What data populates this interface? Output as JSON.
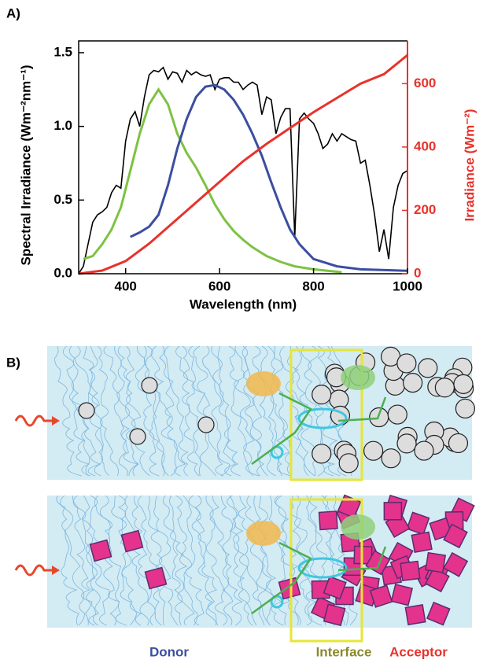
{
  "panel_labels": [
    "A)",
    "B)"
  ],
  "chart_data": {
    "type": "line",
    "xlabel": "Wavelength (nm)",
    "ylabel": "Spectral Irradiance (Wm⁻²nm⁻¹)",
    "y2label": "Irradiance (Wm⁻²)",
    "xlim": [
      300,
      1000
    ],
    "xticks": [
      400,
      600,
      800,
      1000
    ],
    "ylim": [
      0,
      1.58
    ],
    "yticks": [
      {
        "value": 0,
        "label": "0.0"
      },
      0.5,
      {
        "value": 1,
        "label": "1.0"
      },
      1.5
    ],
    "y2lim": [
      0,
      735
    ],
    "y2ticks": [
      0,
      200,
      400,
      600
    ],
    "y2color": "#e8322b",
    "series": [
      {
        "color": "#000000",
        "x": [
          300,
          310,
          320,
          330,
          340,
          350,
          360,
          370,
          380,
          390,
          400,
          410,
          420,
          430,
          440,
          450,
          460,
          470,
          480,
          490,
          500,
          510,
          520,
          530,
          540,
          550,
          560,
          570,
          580,
          590,
          600,
          610,
          620,
          630,
          640,
          650,
          660,
          670,
          680,
          690,
          700,
          710,
          720,
          730,
          740,
          750,
          760,
          770,
          780,
          790,
          800,
          810,
          820,
          830,
          840,
          850,
          860,
          870,
          880,
          890,
          900,
          910,
          920,
          930,
          940,
          950,
          960,
          970,
          980,
          990,
          1000
        ],
        "values": [
          0.0,
          0.05,
          0.2,
          0.35,
          0.4,
          0.42,
          0.45,
          0.55,
          0.6,
          0.58,
          0.9,
          1.05,
          1.1,
          1.0,
          1.2,
          1.35,
          1.38,
          1.37,
          1.4,
          1.32,
          1.37,
          1.36,
          1.3,
          1.38,
          1.35,
          1.37,
          1.35,
          1.34,
          1.35,
          1.25,
          1.32,
          1.33,
          1.33,
          1.3,
          1.3,
          1.25,
          1.28,
          1.3,
          1.28,
          1.08,
          1.2,
          1.18,
          0.95,
          1.06,
          1.12,
          1.12,
          0.25,
          1.05,
          1.09,
          1.05,
          1.02,
          0.95,
          0.85,
          0.88,
          0.95,
          0.9,
          0.95,
          0.93,
          0.91,
          0.9,
          0.75,
          0.77,
          0.6,
          0.4,
          0.15,
          0.3,
          0.1,
          0.45,
          0.6,
          0.68,
          0.7
        ]
      },
      {
        "color": "#7dc242",
        "x": [
          310,
          330,
          350,
          370,
          390,
          410,
          430,
          450,
          470,
          490,
          510,
          530,
          550,
          570,
          590,
          610,
          630,
          650,
          670,
          700,
          730,
          760,
          800,
          860
        ],
        "values": [
          0.1,
          0.12,
          0.2,
          0.3,
          0.45,
          0.7,
          0.95,
          1.15,
          1.25,
          1.15,
          0.95,
          0.82,
          0.72,
          0.6,
          0.47,
          0.37,
          0.29,
          0.23,
          0.18,
          0.12,
          0.08,
          0.05,
          0.03,
          0.01
        ]
      },
      {
        "color": "#3b4ea0",
        "x": [
          410,
          430,
          450,
          470,
          490,
          510,
          530,
          550,
          570,
          590,
          610,
          630,
          650,
          670,
          690,
          710,
          730,
          750,
          770,
          800,
          850,
          900,
          1000
        ],
        "values": [
          0.25,
          0.28,
          0.32,
          0.4,
          0.6,
          0.85,
          1.05,
          1.2,
          1.27,
          1.28,
          1.25,
          1.18,
          1.08,
          0.95,
          0.8,
          0.62,
          0.45,
          0.3,
          0.2,
          0.1,
          0.05,
          0.03,
          0.02
        ]
      },
      {
        "color": "#e8322b",
        "axis": "y2",
        "x": [
          300,
          350,
          400,
          450,
          500,
          550,
          600,
          650,
          700,
          750,
          800,
          850,
          900,
          950,
          1000
        ],
        "values": [
          0,
          10,
          40,
          95,
          160,
          225,
          290,
          355,
          410,
          460,
          510,
          555,
          600,
          630,
          690
        ]
      }
    ]
  },
  "diagram": {
    "labels": [
      {
        "text": "Donor",
        "color": "#3b4ea0"
      },
      {
        "text": "Interface",
        "color": "#8a8a2a"
      },
      {
        "text": "Acceptor",
        "color": "#e8322b"
      }
    ]
  }
}
